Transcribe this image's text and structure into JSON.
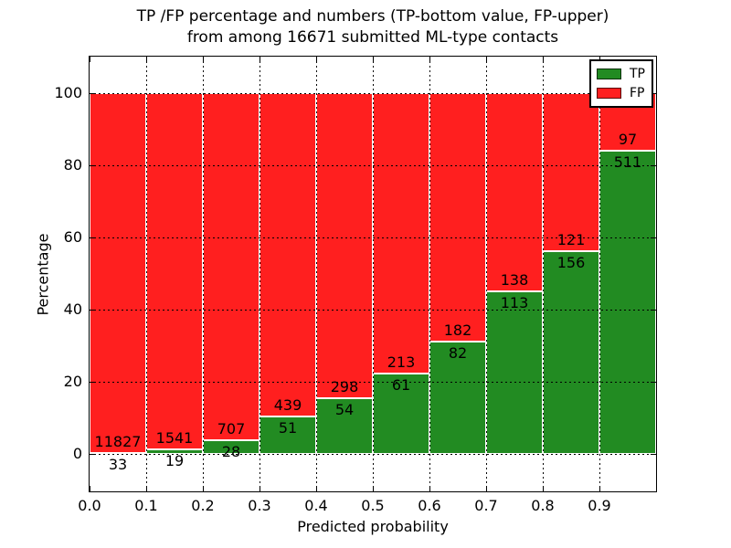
{
  "colors": {
    "tp_green": "#228b22",
    "fp_red": "#ff1f1f",
    "bar_edge": "#ffffff",
    "grid": "#000000",
    "background": "#ffffff",
    "text": "#000000"
  },
  "legend": {
    "tp_label": "TP",
    "fp_label": "FP"
  },
  "chart_data": {
    "type": "bar",
    "stacked": true,
    "title_line1": "TP /FP percentage and numbers (TP-bottom value, FP-upper)",
    "title_line2": "from among 16671 submitted ML-type contacts",
    "xlabel": "Predicted probability",
    "ylabel": "Percentage",
    "total_contacts": 16671,
    "x_bin_edges": [
      0.0,
      0.1,
      0.2,
      0.3,
      0.4,
      0.5,
      0.6,
      0.7,
      0.8,
      0.9,
      1.0
    ],
    "x_tick_labels": [
      "0.0",
      "0.1",
      "0.2",
      "0.3",
      "0.4",
      "0.5",
      "0.6",
      "0.7",
      "0.8",
      "0.9"
    ],
    "y_ticks": [
      0,
      20,
      40,
      60,
      80,
      100
    ],
    "xlim": [
      0.0,
      1.0
    ],
    "ylim": [
      -10.5,
      110.5
    ],
    "grid": "dotted",
    "legend_position": "upper right",
    "series": [
      {
        "name": "TP",
        "color": "#228b22",
        "counts": [
          33,
          19,
          28,
          51,
          54,
          61,
          82,
          113,
          156,
          511
        ]
      },
      {
        "name": "FP",
        "color": "#ff1f1f",
        "counts": [
          11827,
          1541,
          707,
          439,
          298,
          213,
          182,
          138,
          121,
          97
        ]
      }
    ],
    "tp_percent_approx": [
      0.28,
      1.22,
      3.81,
      10.41,
      15.34,
      22.26,
      31.06,
      45.02,
      56.32,
      84.05
    ]
  }
}
